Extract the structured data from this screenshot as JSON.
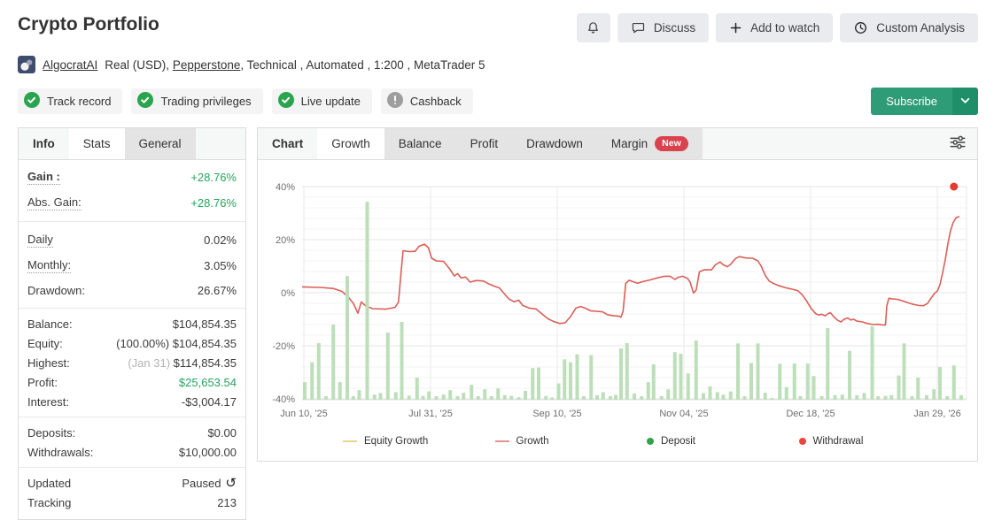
{
  "header": {
    "title": "Crypto Portfolio",
    "actions": {
      "notifications_icon": "bell-icon",
      "discuss": "Discuss",
      "add_to_watch": "Add to watch",
      "custom_analysis": "Custom Analysis"
    },
    "account": {
      "avatar_icon": "account-avatar",
      "owner": "AlgocratAI",
      "meta_pre": "Real (USD),",
      "broker": "Pepperstone",
      "meta_post": ", Technical , Automated , 1:200 , MetaTrader 5"
    },
    "badges": [
      {
        "label": "Track record",
        "icon": "check-circle-icon",
        "status": "verified"
      },
      {
        "label": "Trading privileges",
        "icon": "check-circle-icon",
        "status": "verified"
      },
      {
        "label": "Live update",
        "icon": "check-circle-icon",
        "status": "verified"
      },
      {
        "label": "Cashback",
        "icon": "exclamation-circle-icon",
        "status": "neutral"
      }
    ],
    "subscribe_label": "Subscribe"
  },
  "colors": {
    "accent_green": "#2e9d77",
    "accent_green_dark": "#1f8f69",
    "positive_text": "#27a35d",
    "badge_verified": "#2aa44f",
    "badge_neutral": "#9e9e9e",
    "new_pill": "#d9434e"
  },
  "stats_panel": {
    "tabs": [
      {
        "label": "Info",
        "state": "plain"
      },
      {
        "label": "Stats",
        "state": "active"
      },
      {
        "label": "General",
        "state": "gray"
      }
    ],
    "groups": [
      {
        "size": "lg",
        "rows": [
          {
            "label": "Gain :",
            "value": "+28.76%",
            "dotted": true,
            "bold": true,
            "value_class": "green bold"
          },
          {
            "label": "Abs. Gain:",
            "value": "+28.76%",
            "dotted": true,
            "value_class": "green"
          }
        ]
      },
      {
        "size": "lg",
        "rows": [
          {
            "label": "Daily",
            "value": "0.02%",
            "dotted": true
          },
          {
            "label": "Monthly:",
            "value": "3.05%",
            "dotted": true
          },
          {
            "label": "Drawdown:",
            "value": "26.67%"
          }
        ]
      },
      {
        "size": "",
        "rows": [
          {
            "label": "Balance:",
            "value": "$104,854.35"
          },
          {
            "label": "Equity:",
            "value": "$104,854.35",
            "prefix": "(100.00%) "
          },
          {
            "label": "Highest:",
            "value": "$114,854.35",
            "prefix": "(Jan 31) ",
            "prefix_muted": true
          },
          {
            "label": "Profit:",
            "value": "$25,653.54",
            "value_class": "green"
          },
          {
            "label": "Interest:",
            "value": "-$3,004.17"
          }
        ]
      },
      {
        "size": "",
        "rows": [
          {
            "label": "Deposits:",
            "value": "$0.00"
          },
          {
            "label": "Withdrawals:",
            "value": "$10,000.00"
          }
        ]
      },
      {
        "size": "",
        "rows": [
          {
            "label": "Updated",
            "value": "Paused",
            "icon": "refresh-icon"
          },
          {
            "label": "Tracking",
            "value": "213"
          }
        ]
      }
    ]
  },
  "chart_panel": {
    "tabs": [
      {
        "label": "Chart",
        "state": "plain"
      },
      {
        "label": "Growth",
        "state": "active"
      },
      {
        "label": "Balance",
        "state": "gray"
      },
      {
        "label": "Profit",
        "state": "gray"
      },
      {
        "label": "Drawdown",
        "state": "gray"
      },
      {
        "label": "Margin",
        "state": "gray",
        "badge": "New"
      }
    ],
    "filter_icon": "sliders-icon"
  },
  "chart_data": {
    "type": "line",
    "title": "Growth",
    "ylim": [
      -40,
      40
    ],
    "grid": true,
    "y_ticks": [
      {
        "v": 40,
        "label": "40%"
      },
      {
        "v": 20,
        "label": "20%"
      },
      {
        "v": 0,
        "label": "0%"
      },
      {
        "v": -20,
        "label": "-20%"
      },
      {
        "v": -40,
        "label": "-40%"
      }
    ],
    "x_ticks": [
      "Jun 10, '25",
      "Jul 31, '25",
      "Sep 10, '25",
      "Nov 04, '25",
      "Dec 18, '25",
      "Jan 29, '26"
    ],
    "legend": [
      {
        "label": "Equity Growth",
        "swatch": "line",
        "color": "#ecd28f"
      },
      {
        "label": "Growth",
        "swatch": "line",
        "color": "#e2938d"
      },
      {
        "label": "Deposit",
        "swatch": "dot",
        "color": "#33a14c"
      },
      {
        "label": "Withdrawal",
        "swatch": "dot",
        "color": "#e8473d"
      }
    ],
    "series": [
      {
        "name": "Growth",
        "type": "line",
        "color": "#da5f58",
        "unit": "%",
        "points": [
          [
            0,
            2.2
          ],
          [
            0.027,
            2
          ],
          [
            0.047,
            1.6
          ],
          [
            0.06,
            0.5
          ],
          [
            0.069,
            -1.5
          ],
          [
            0.077,
            -4
          ],
          [
            0.084,
            -7.7
          ],
          [
            0.089,
            -3.5
          ],
          [
            0.096,
            -5
          ],
          [
            0.106,
            -6
          ],
          [
            0.126,
            -6.2
          ],
          [
            0.14,
            -5.5
          ],
          [
            0.145,
            -3.5
          ],
          [
            0.149,
            8
          ],
          [
            0.152,
            15.8
          ],
          [
            0.162,
            15.5
          ],
          [
            0.17,
            15.6
          ],
          [
            0.176,
            17.5
          ],
          [
            0.184,
            18.3
          ],
          [
            0.19,
            17
          ],
          [
            0.195,
            13
          ],
          [
            0.202,
            12
          ],
          [
            0.213,
            11.8
          ],
          [
            0.222,
            9
          ],
          [
            0.229,
            6.3
          ],
          [
            0.234,
            7.2
          ],
          [
            0.239,
            5.6
          ],
          [
            0.246,
            5.9
          ],
          [
            0.253,
            4
          ],
          [
            0.262,
            4.6
          ],
          [
            0.273,
            4.4
          ],
          [
            0.282,
            3.2
          ],
          [
            0.29,
            2.4
          ],
          [
            0.297,
            1.8
          ],
          [
            0.303,
            0
          ],
          [
            0.311,
            -2.3
          ],
          [
            0.319,
            -3.4
          ],
          [
            0.326,
            -2.8
          ],
          [
            0.332,
            -4.8
          ],
          [
            0.342,
            -5.8
          ],
          [
            0.352,
            -6.1
          ],
          [
            0.362,
            -8.2
          ],
          [
            0.37,
            -9.8
          ],
          [
            0.379,
            -10.9
          ],
          [
            0.388,
            -11.6
          ],
          [
            0.396,
            -11.3
          ],
          [
            0.404,
            -9
          ],
          [
            0.412,
            -5.8
          ],
          [
            0.419,
            -5.2
          ],
          [
            0.426,
            -5.8
          ],
          [
            0.434,
            -6.8
          ],
          [
            0.443,
            -7
          ],
          [
            0.452,
            -7.2
          ],
          [
            0.46,
            -8.3
          ],
          [
            0.469,
            -8.7
          ],
          [
            0.476,
            -8.8
          ],
          [
            0.48,
            -9.2
          ],
          [
            0.483,
            -7
          ],
          [
            0.487,
            3.5
          ],
          [
            0.492,
            4.7
          ],
          [
            0.499,
            4.1
          ],
          [
            0.505,
            3.6
          ],
          [
            0.513,
            4.2
          ],
          [
            0.523,
            4.8
          ],
          [
            0.535,
            5.6
          ],
          [
            0.545,
            6.2
          ],
          [
            0.554,
            6.2
          ],
          [
            0.561,
            5
          ],
          [
            0.566,
            5.8
          ],
          [
            0.573,
            6.2
          ],
          [
            0.58,
            5.4
          ],
          [
            0.584,
            4
          ],
          [
            0.589,
            -0.1
          ],
          [
            0.593,
            1
          ],
          [
            0.598,
            7.9
          ],
          [
            0.606,
            8.7
          ],
          [
            0.616,
            8.6
          ],
          [
            0.622,
            10.5
          ],
          [
            0.629,
            11.6
          ],
          [
            0.634,
            10.5
          ],
          [
            0.64,
            9.8
          ],
          [
            0.645,
            10.7
          ],
          [
            0.652,
            12.8
          ],
          [
            0.658,
            13.6
          ],
          [
            0.668,
            13.1
          ],
          [
            0.678,
            13
          ],
          [
            0.686,
            12
          ],
          [
            0.691,
            10
          ],
          [
            0.697,
            6.5
          ],
          [
            0.703,
            4.4
          ],
          [
            0.71,
            3.4
          ],
          [
            0.718,
            2.6
          ],
          [
            0.729,
            1.8
          ],
          [
            0.738,
            1.3
          ],
          [
            0.746,
            0.8
          ],
          [
            0.753,
            -0.9
          ],
          [
            0.759,
            -3
          ],
          [
            0.766,
            -5.9
          ],
          [
            0.773,
            -7.9
          ],
          [
            0.778,
            -8.4
          ],
          [
            0.782,
            -8.1
          ],
          [
            0.787,
            -8.7
          ],
          [
            0.791,
            -8
          ],
          [
            0.795,
            -7.5
          ],
          [
            0.8,
            -9
          ],
          [
            0.806,
            -10.4
          ],
          [
            0.811,
            -11
          ],
          [
            0.815,
            -10.1
          ],
          [
            0.821,
            -9.5
          ],
          [
            0.826,
            -10.3
          ],
          [
            0.83,
            -10
          ],
          [
            0.835,
            -10.7
          ],
          [
            0.843,
            -11
          ],
          [
            0.851,
            -11.6
          ],
          [
            0.859,
            -12
          ],
          [
            0.867,
            -11.9
          ],
          [
            0.872,
            -12.1
          ],
          [
            0.878,
            -12.2
          ],
          [
            0.88,
            -5
          ],
          [
            0.883,
            -2.1
          ],
          [
            0.888,
            -2.3
          ],
          [
            0.896,
            -2.5
          ],
          [
            0.904,
            -3.1
          ],
          [
            0.912,
            -3.8
          ],
          [
            0.92,
            -4.4
          ],
          [
            0.928,
            -4.8
          ],
          [
            0.935,
            -4.9
          ],
          [
            0.941,
            -4.1
          ],
          [
            0.947,
            -1.9
          ],
          [
            0.952,
            -0.2
          ],
          [
            0.956,
            0.6
          ],
          [
            0.96,
            3
          ],
          [
            0.964,
            7.5
          ],
          [
            0.968,
            12.5
          ],
          [
            0.972,
            18.5
          ],
          [
            0.976,
            23.5
          ],
          [
            0.98,
            26.5
          ],
          [
            0.984,
            28.2
          ],
          [
            0.989,
            28.8
          ]
        ]
      },
      {
        "name": "Equity Growth",
        "type": "line",
        "color": "#ecd28f",
        "unit": "%",
        "points": []
      },
      {
        "name": "Deposit",
        "type": "bar",
        "color": "#bcdfb9",
        "baseline": -40,
        "unit": "%",
        "bars": [
          [
            0.004,
            -33.7
          ],
          [
            0.015,
            -26.2
          ],
          [
            0.025,
            -19
          ],
          [
            0.036,
            -39
          ],
          [
            0.047,
            -12
          ],
          [
            0.057,
            -33.7
          ],
          [
            0.068,
            6.3
          ],
          [
            0.077,
            -39
          ],
          [
            0.086,
            -36.7
          ],
          [
            0.098,
            34.3
          ],
          [
            0.109,
            -38.4
          ],
          [
            0.118,
            -37.8
          ],
          [
            0.129,
            -15
          ],
          [
            0.141,
            -37.5
          ],
          [
            0.15,
            -11
          ],
          [
            0.161,
            -38.8
          ],
          [
            0.173,
            -32
          ],
          [
            0.182,
            -38.9
          ],
          [
            0.191,
            -37.2
          ],
          [
            0.202,
            -39
          ],
          [
            0.213,
            -38.4
          ],
          [
            0.223,
            -36.7
          ],
          [
            0.234,
            -39
          ],
          [
            0.243,
            -37.7
          ],
          [
            0.255,
            -34.7
          ],
          [
            0.265,
            -39
          ],
          [
            0.275,
            -36.4
          ],
          [
            0.285,
            -39
          ],
          [
            0.295,
            -36.1
          ],
          [
            0.305,
            -38.6
          ],
          [
            0.315,
            -38.9
          ],
          [
            0.326,
            -39.4
          ],
          [
            0.336,
            -37
          ],
          [
            0.347,
            -28.4
          ],
          [
            0.356,
            -28.2
          ],
          [
            0.367,
            -38.9
          ],
          [
            0.376,
            -39.5
          ],
          [
            0.386,
            -34.2
          ],
          [
            0.395,
            -25.1
          ],
          [
            0.404,
            -26.2
          ],
          [
            0.414,
            -23.2
          ],
          [
            0.424,
            -39
          ],
          [
            0.435,
            -23.5
          ],
          [
            0.444,
            -38.6
          ],
          [
            0.453,
            -37.5
          ],
          [
            0.464,
            -39
          ],
          [
            0.472,
            -38.5
          ],
          [
            0.48,
            -21
          ],
          [
            0.489,
            -19
          ],
          [
            0.5,
            -38
          ],
          [
            0.511,
            -39
          ],
          [
            0.521,
            -33.7
          ],
          [
            0.529,
            -27
          ],
          [
            0.541,
            -39
          ],
          [
            0.551,
            -36.4
          ],
          [
            0.561,
            -22.4
          ],
          [
            0.57,
            -23
          ],
          [
            0.581,
            -30.4
          ],
          [
            0.593,
            -18
          ],
          [
            0.604,
            -37.8
          ],
          [
            0.614,
            -35.3
          ],
          [
            0.625,
            -37.5
          ],
          [
            0.634,
            -38.4
          ],
          [
            0.645,
            -37.2
          ],
          [
            0.656,
            -19.1
          ],
          [
            0.666,
            -39
          ],
          [
            0.676,
            -26.5
          ],
          [
            0.686,
            -19.1
          ],
          [
            0.697,
            -37.7
          ],
          [
            0.707,
            -39.7
          ],
          [
            0.719,
            -26.8
          ],
          [
            0.729,
            -35.6
          ],
          [
            0.741,
            -26.7
          ],
          [
            0.75,
            -39
          ],
          [
            0.761,
            -26.7
          ],
          [
            0.77,
            -31.4
          ],
          [
            0.782,
            -39
          ],
          [
            0.791,
            -13.3
          ],
          [
            0.802,
            -38.6
          ],
          [
            0.813,
            -38.4
          ],
          [
            0.824,
            -21.9
          ],
          [
            0.835,
            -38.6
          ],
          [
            0.846,
            -37.8
          ],
          [
            0.858,
            -12.7
          ],
          [
            0.867,
            -39
          ],
          [
            0.878,
            -38.9
          ],
          [
            0.887,
            -38.6
          ],
          [
            0.898,
            -31.2
          ],
          [
            0.906,
            -19.1
          ],
          [
            0.918,
            -39
          ],
          [
            0.927,
            -32
          ],
          [
            0.94,
            -38.6
          ],
          [
            0.951,
            -36.4
          ],
          [
            0.96,
            -28
          ],
          [
            0.971,
            -39
          ],
          [
            0.981,
            -27.4
          ],
          [
            0.992,
            -38.6
          ]
        ]
      },
      {
        "name": "Withdrawal",
        "type": "marker",
        "color": "#e8392e",
        "unit": "%",
        "points": [
          [
            0.981,
            40
          ]
        ]
      }
    ]
  }
}
